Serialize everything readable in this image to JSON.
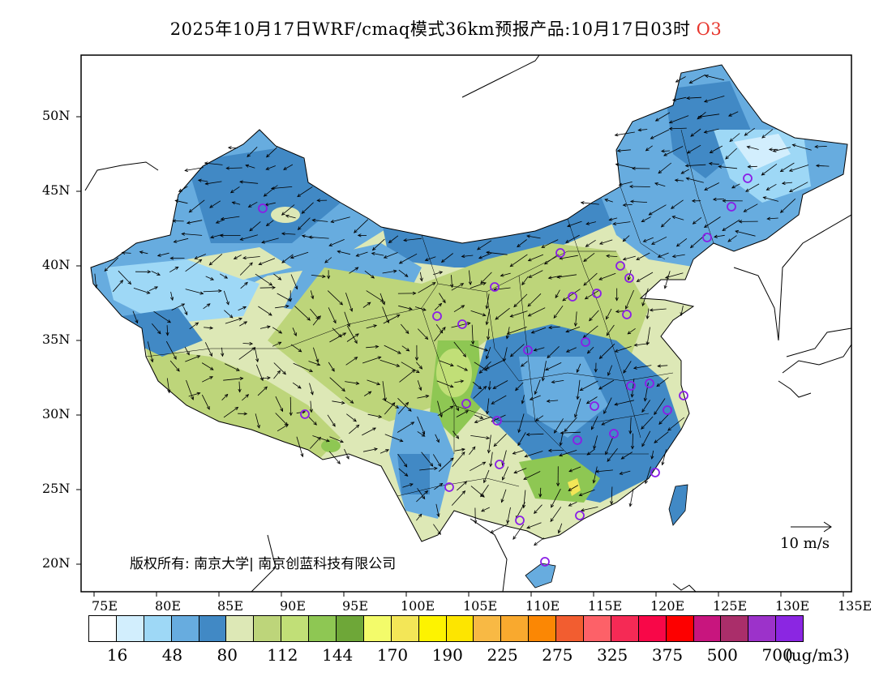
{
  "title": {
    "main": "2025年10月17日WRF/cmaq模式36km预报产品:10月17日03时",
    "species": "O3"
  },
  "axes": {
    "lat_labels": [
      "50N",
      "45N",
      "40N",
      "35N",
      "30N",
      "25N",
      "20N"
    ],
    "lon_labels": [
      "75E",
      "80E",
      "85E",
      "90E",
      "95E",
      "100E",
      "105E",
      "110E",
      "115E",
      "120E",
      "125E",
      "130E",
      "135E"
    ]
  },
  "legend": {
    "colors": [
      "#ffffff",
      "#d2eefd",
      "#9ed8f6",
      "#67acdf",
      "#4189c5",
      "#dde8b6",
      "#bdd57a",
      "#c1df77",
      "#8ec753",
      "#6ea738",
      "#f3fb6a",
      "#f3e657",
      "#fdf300",
      "#fde500",
      "#f8b944",
      "#f9a92e",
      "#fb8704",
      "#f25d30",
      "#fd6168",
      "#f52a55",
      "#f80748",
      "#fd0000",
      "#c8157e",
      "#aa2e6a",
      "#9c32ca",
      "#8b26e2"
    ],
    "labels": [
      "16",
      "48",
      "80",
      "112",
      "144",
      "170",
      "190",
      "225",
      "275",
      "325",
      "375",
      "500",
      "700"
    ],
    "unit": "(ug/m3)"
  },
  "copyright": "版权所有: 南京大学| 南京创蓝科技有限公司",
  "wind_scale": "10 m/s"
}
